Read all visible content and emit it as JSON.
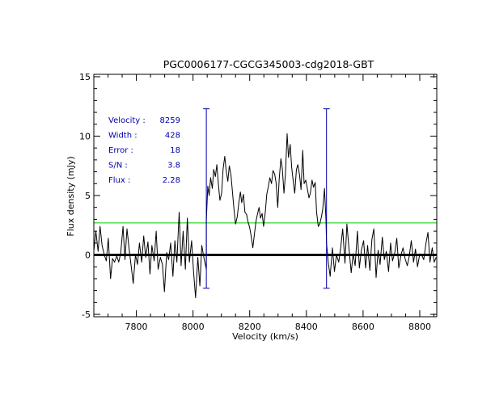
{
  "chart_data": {
    "type": "line",
    "title": "PGC0006177-CGCG345003-cdg2018-GBT",
    "xlabel": "Velocity (km/s)",
    "ylabel": "Flux density (mJy)",
    "xlim": [
      7650,
      8860
    ],
    "ylim": [
      -5.2,
      15.2
    ],
    "x_ticks": [
      7800,
      8000,
      8200,
      8400,
      8600,
      8800
    ],
    "y_ticks": [
      -5,
      0,
      5,
      10,
      15
    ],
    "info": [
      {
        "label": "Velocity :",
        "value": "8259"
      },
      {
        "label": "Width :",
        "value": "428"
      },
      {
        "label": "Error :",
        "value": "18"
      },
      {
        "label": "S/N :",
        "value": "3.8"
      },
      {
        "label": "Flux :",
        "value": "2.28"
      }
    ],
    "zero_line": 0,
    "threshold_line": 2.7,
    "markers": [
      {
        "x": 8047,
        "ymin": -2.8,
        "ymax": 12.3
      },
      {
        "x": 8471,
        "ymin": -2.8,
        "ymax": 12.3
      }
    ],
    "colors": {
      "spectrum": "#000000",
      "zero_line": "#000000",
      "threshold_line": "#00cc00",
      "markers": "#0000aa",
      "info_text": "#0000aa"
    },
    "series": [
      {
        "values": [
          [
            7650,
            0.3
          ],
          [
            7657,
            2.0
          ],
          [
            7665,
            0.3
          ],
          [
            7672,
            2.4
          ],
          [
            7679,
            0.8
          ],
          [
            7687,
            0.0
          ],
          [
            7694,
            -0.5
          ],
          [
            7701,
            1.4
          ],
          [
            7709,
            -2.0
          ],
          [
            7716,
            -0.3
          ],
          [
            7723,
            -0.6
          ],
          [
            7731,
            -0.1
          ],
          [
            7738,
            -0.6
          ],
          [
            7745,
            0.2
          ],
          [
            7753,
            2.4
          ],
          [
            7760,
            -0.4
          ],
          [
            7767,
            2.2
          ],
          [
            7775,
            0.4
          ],
          [
            7782,
            -1.0
          ],
          [
            7789,
            -2.4
          ],
          [
            7797,
            0.0
          ],
          [
            7804,
            -0.8
          ],
          [
            7811,
            1.0
          ],
          [
            7819,
            -0.6
          ],
          [
            7826,
            1.6
          ],
          [
            7833,
            -0.2
          ],
          [
            7841,
            1.1
          ],
          [
            7848,
            -1.6
          ],
          [
            7855,
            0.8
          ],
          [
            7863,
            -0.5
          ],
          [
            7870,
            2.0
          ],
          [
            7877,
            -1.2
          ],
          [
            7885,
            -0.2
          ],
          [
            7892,
            -0.8
          ],
          [
            7899,
            -3.1
          ],
          [
            7907,
            0.2
          ],
          [
            7914,
            -0.4
          ],
          [
            7921,
            1.0
          ],
          [
            7929,
            -1.8
          ],
          [
            7936,
            1.2
          ],
          [
            7943,
            -0.6
          ],
          [
            7951,
            3.6
          ],
          [
            7958,
            -0.9
          ],
          [
            7965,
            2.0
          ],
          [
            7973,
            -1.2
          ],
          [
            7980,
            3.1
          ],
          [
            7987,
            -0.6
          ],
          [
            7995,
            1.2
          ],
          [
            8002,
            -1.4
          ],
          [
            8009,
            -3.6
          ],
          [
            8017,
            -0.2
          ],
          [
            8024,
            -2.6
          ],
          [
            8031,
            0.8
          ],
          [
            8039,
            -0.3
          ],
          [
            8047,
            -1.2
          ],
          [
            8047,
            2.9
          ],
          [
            8052,
            5.8
          ],
          [
            8057,
            5.0
          ],
          [
            8062,
            6.5
          ],
          [
            8068,
            5.6
          ],
          [
            8073,
            7.2
          ],
          [
            8079,
            6.6
          ],
          [
            8084,
            7.6
          ],
          [
            8090,
            5.8
          ],
          [
            8095,
            4.6
          ],
          [
            8101,
            5.2
          ],
          [
            8106,
            7.2
          ],
          [
            8112,
            8.3
          ],
          [
            8117,
            7.1
          ],
          [
            8123,
            6.2
          ],
          [
            8128,
            7.5
          ],
          [
            8134,
            6.7
          ],
          [
            8139,
            5.3
          ],
          [
            8145,
            3.7
          ],
          [
            8150,
            2.6
          ],
          [
            8156,
            3.2
          ],
          [
            8161,
            4.3
          ],
          [
            8167,
            5.3
          ],
          [
            8172,
            4.4
          ],
          [
            8178,
            5.1
          ],
          [
            8183,
            3.6
          ],
          [
            8189,
            3.4
          ],
          [
            8194,
            2.8
          ],
          [
            8200,
            2.3
          ],
          [
            8205,
            1.6
          ],
          [
            8211,
            0.6
          ],
          [
            8216,
            1.6
          ],
          [
            8222,
            2.8
          ],
          [
            8227,
            3.4
          ],
          [
            8233,
            4.0
          ],
          [
            8238,
            3.1
          ],
          [
            8244,
            3.5
          ],
          [
            8249,
            2.4
          ],
          [
            8255,
            3.6
          ],
          [
            8260,
            5.1
          ],
          [
            8266,
            5.8
          ],
          [
            8271,
            6.5
          ],
          [
            8277,
            6.0
          ],
          [
            8282,
            7.1
          ],
          [
            8288,
            6.8
          ],
          [
            8293,
            6.1
          ],
          [
            8299,
            4.0
          ],
          [
            8304,
            6.4
          ],
          [
            8310,
            8.1
          ],
          [
            8315,
            7.3
          ],
          [
            8321,
            5.2
          ],
          [
            8326,
            6.8
          ],
          [
            8332,
            10.2
          ],
          [
            8337,
            8.2
          ],
          [
            8343,
            9.3
          ],
          [
            8348,
            7.4
          ],
          [
            8354,
            6.1
          ],
          [
            8359,
            5.2
          ],
          [
            8365,
            7.2
          ],
          [
            8370,
            7.6
          ],
          [
            8376,
            6.7
          ],
          [
            8381,
            5.5
          ],
          [
            8387,
            8.8
          ],
          [
            8392,
            6.0
          ],
          [
            8398,
            6.3
          ],
          [
            8403,
            5.6
          ],
          [
            8409,
            4.8
          ],
          [
            8414,
            5.2
          ],
          [
            8420,
            6.3
          ],
          [
            8425,
            5.7
          ],
          [
            8431,
            6.1
          ],
          [
            8436,
            3.6
          ],
          [
            8442,
            2.4
          ],
          [
            8447,
            2.6
          ],
          [
            8453,
            3.2
          ],
          [
            8458,
            3.9
          ],
          [
            8464,
            5.6
          ],
          [
            8469,
            3.0
          ],
          [
            8471,
            0.9
          ],
          [
            8471,
            1.0
          ],
          [
            8477,
            -0.6
          ],
          [
            8484,
            -1.8
          ],
          [
            8492,
            0.6
          ],
          [
            8499,
            -1.4
          ],
          [
            8506,
            0.0
          ],
          [
            8514,
            -0.6
          ],
          [
            8521,
            0.6
          ],
          [
            8528,
            2.2
          ],
          [
            8536,
            -0.7
          ],
          [
            8543,
            2.6
          ],
          [
            8550,
            0.6
          ],
          [
            8558,
            -1.5
          ],
          [
            8565,
            0.1
          ],
          [
            8572,
            -0.9
          ],
          [
            8580,
            2.0
          ],
          [
            8587,
            -1.1
          ],
          [
            8594,
            0.4
          ],
          [
            8602,
            1.2
          ],
          [
            8609,
            -1.1
          ],
          [
            8616,
            0.8
          ],
          [
            8624,
            -1.3
          ],
          [
            8631,
            1.3
          ],
          [
            8638,
            2.2
          ],
          [
            8646,
            -1.9
          ],
          [
            8653,
            0.4
          ],
          [
            8660,
            -0.8
          ],
          [
            8668,
            1.5
          ],
          [
            8675,
            -0.4
          ],
          [
            8682,
            0.3
          ],
          [
            8690,
            -1.4
          ],
          [
            8697,
            1.0
          ],
          [
            8704,
            -0.5
          ],
          [
            8712,
            0.2
          ],
          [
            8719,
            1.4
          ],
          [
            8726,
            -1.1
          ],
          [
            8734,
            0.0
          ],
          [
            8741,
            0.6
          ],
          [
            8748,
            -0.3
          ],
          [
            8756,
            -0.9
          ],
          [
            8763,
            -0.1
          ],
          [
            8770,
            1.2
          ],
          [
            8778,
            -0.6
          ],
          [
            8785,
            0.5
          ],
          [
            8792,
            -1.0
          ],
          [
            8800,
            0.1
          ],
          [
            8807,
            0.0
          ],
          [
            8814,
            -0.4
          ],
          [
            8822,
            1.0
          ],
          [
            8829,
            1.9
          ],
          [
            8836,
            -0.6
          ],
          [
            8844,
            0.6
          ],
          [
            8851,
            -0.6
          ],
          [
            8858,
            -0.2
          ]
        ]
      }
    ]
  }
}
